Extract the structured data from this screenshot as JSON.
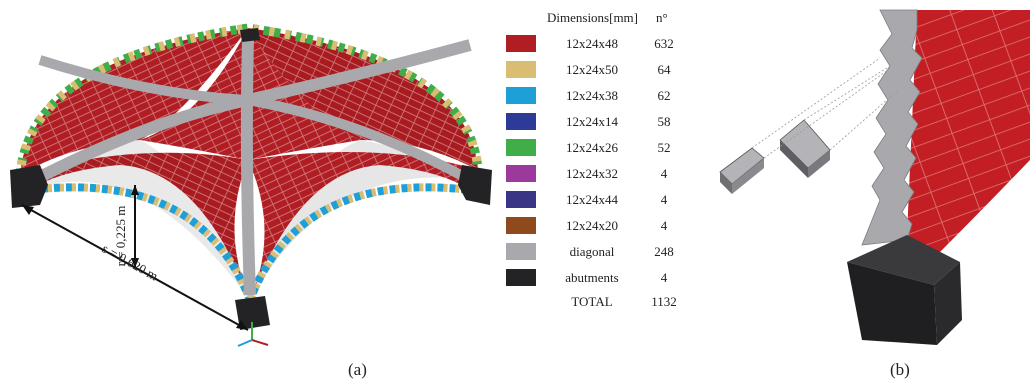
{
  "panel_a": {
    "caption": "(a)",
    "dim_r": "r = 0,225 m",
    "dim_s": "s = 0,620 m"
  },
  "panel_b": {
    "caption": "(b)"
  },
  "legend": {
    "header_dimensions": "Dimensions[mm]",
    "header_count": "n°",
    "rows": [
      {
        "label": "12x24x48",
        "count": "632",
        "color": "#b01e24"
      },
      {
        "label": "12x24x50",
        "count": "64",
        "color": "#d9bd72"
      },
      {
        "label": "12x24x38",
        "count": "62",
        "color": "#1e9fd8"
      },
      {
        "label": "12x24x14",
        "count": "58",
        "color": "#2e3a98"
      },
      {
        "label": "12x24x26",
        "count": "52",
        "color": "#3fae48"
      },
      {
        "label": "12x24x32",
        "count": "4",
        "color": "#9b3a9c"
      },
      {
        "label": "12x24x44",
        "count": "4",
        "color": "#3b3586"
      },
      {
        "label": "12x24x20",
        "count": "4",
        "color": "#8e4a1d"
      },
      {
        "label": "diagonal",
        "count": "248",
        "color": "#a9a9ad"
      },
      {
        "label": "abutments",
        "count": "4",
        "color": "#232325"
      }
    ],
    "total_label": "TOTAL",
    "total_count": "1132"
  }
}
